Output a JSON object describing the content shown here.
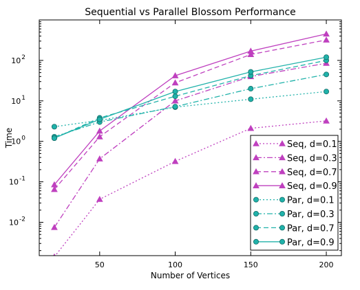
{
  "chart_data": {
    "type": "line",
    "title": "Sequential vs Parallel Blossom Performance",
    "xlabel": "Number of Vertices",
    "ylabel": "Time",
    "x": [
      20,
      50,
      100,
      150,
      200
    ],
    "xlim": [
      10,
      210
    ],
    "ylim": [
      0.0015,
      1000
    ],
    "yscale": "log",
    "xticks": [
      50,
      100,
      150,
      200
    ],
    "yticks": [
      {
        "value": 0.01,
        "base": "10",
        "exp": "-2"
      },
      {
        "value": 0.1,
        "base": "10",
        "exp": "-1"
      },
      {
        "value": 1,
        "base": "10",
        "exp": "0"
      },
      {
        "value": 10,
        "base": "10",
        "exp": "1"
      },
      {
        "value": 100,
        "base": "10",
        "exp": "2"
      }
    ],
    "grid": false,
    "legend_position": "lower-right",
    "series": [
      {
        "name": "Seq, d=0.1",
        "color": "#bf40bf",
        "marker": "triangle",
        "linestyle": "dotted",
        "values": [
          0.0014,
          0.037,
          0.32,
          2.1,
          3.2
        ]
      },
      {
        "name": "Seq, d=0.3",
        "color": "#bf40bf",
        "marker": "triangle",
        "linestyle": "dashdot",
        "values": [
          0.0075,
          0.37,
          10,
          40,
          85
        ]
      },
      {
        "name": "Seq, d=0.7",
        "color": "#bf40bf",
        "marker": "triangle",
        "linestyle": "dashed",
        "values": [
          0.065,
          1.3,
          28,
          140,
          320
        ]
      },
      {
        "name": "Seq, d=0.9",
        "color": "#bf40bf",
        "marker": "triangle",
        "linestyle": "solid",
        "values": [
          0.085,
          1.8,
          42,
          170,
          450
        ]
      },
      {
        "name": "Par, d=0.1",
        "color": "#20b2aa",
        "marker": "circle",
        "linestyle": "dotted",
        "values": [
          2.3,
          3.3,
          7,
          11,
          17
        ]
      },
      {
        "name": "Par, d=0.3",
        "color": "#20b2aa",
        "marker": "circle",
        "linestyle": "dashdot",
        "values": [
          1.3,
          3.0,
          7.2,
          20,
          45
        ]
      },
      {
        "name": "Par, d=0.7",
        "color": "#20b2aa",
        "marker": "circle",
        "linestyle": "dashed",
        "values": [
          1.2,
          3.8,
          13,
          42,
          100
        ]
      },
      {
        "name": "Par, d=0.9",
        "color": "#20b2aa",
        "marker": "circle",
        "linestyle": "solid",
        "values": [
          1.2,
          3.5,
          17,
          52,
          120
        ]
      }
    ]
  }
}
